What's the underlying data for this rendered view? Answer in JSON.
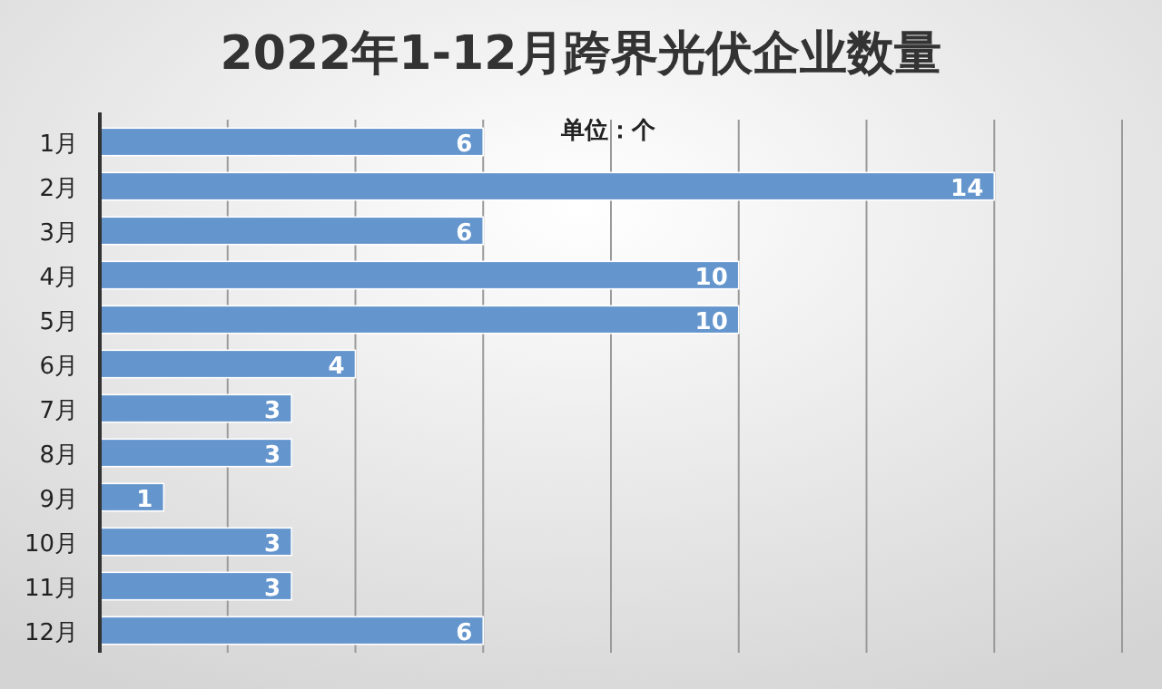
{
  "chart_data": {
    "type": "bar",
    "orientation": "horizontal",
    "title": "2022年1-12月跨界光伏企业数量",
    "annotations": [
      "单位：个"
    ],
    "categories": [
      "1月",
      "2月",
      "3月",
      "4月",
      "5月",
      "6月",
      "7月",
      "8月",
      "9月",
      "10月",
      "11月",
      "12月"
    ],
    "values": [
      6,
      14,
      6,
      10,
      10,
      4,
      3,
      3,
      1,
      3,
      3,
      6
    ],
    "color": "#6495cd",
    "xlim": [
      0,
      16
    ],
    "xticks": [
      {
        "value": 0,
        "label": null
      },
      {
        "value": 2,
        "label": null
      },
      {
        "value": 4,
        "label": null
      },
      {
        "value": 6,
        "label": null
      },
      {
        "value": 8,
        "label": null
      },
      {
        "value": 10,
        "label": null
      },
      {
        "value": 12,
        "label": null
      },
      {
        "value": 14,
        "label": null
      },
      {
        "value": 16,
        "label": null
      }
    ],
    "grid": "x",
    "tick_labels": "y",
    "data_labels": true
  }
}
